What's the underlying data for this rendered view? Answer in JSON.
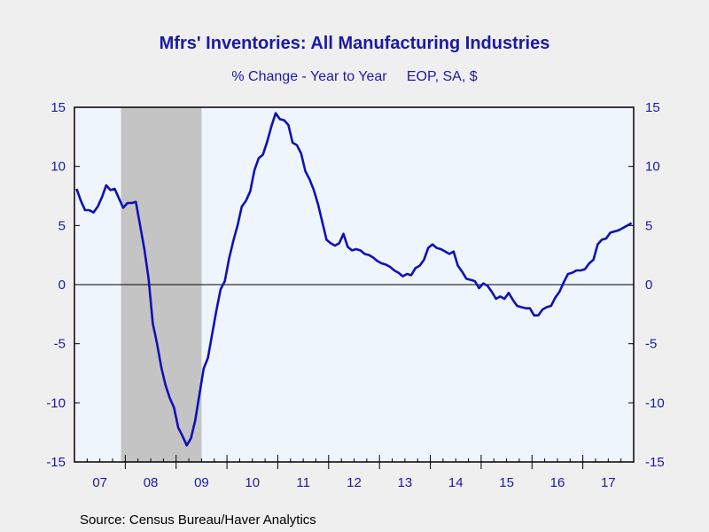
{
  "chart_data": {
    "type": "line",
    "title": "Mfrs' Inventories: All Manufacturing Industries",
    "subtitle": "% Change - Year to Year     EOP, SA, $",
    "source": "Source:  Census Bureau/Haver Analytics",
    "x_tick_labels": [
      "07",
      "08",
      "09",
      "10",
      "11",
      "12",
      "13",
      "14",
      "15",
      "16",
      "17"
    ],
    "y_tick_labels": [
      "15",
      "10",
      "5",
      "0",
      "-5",
      "-10",
      "-15"
    ],
    "y_ticks": [
      15,
      10,
      5,
      0,
      -5,
      -10,
      -15
    ],
    "ylim": [
      -15,
      15
    ],
    "xlim": [
      "2007-01",
      "2017-12"
    ],
    "grid": false,
    "zero_line": true,
    "recession_shading": [
      {
        "start": "2007-12",
        "end": "2009-06"
      }
    ],
    "colors": {
      "line": "#1010b8",
      "axis_text": "#1a1aa6",
      "plot_bg": "#eef5fd",
      "recession": "#c4c4c4"
    },
    "series": [
      {
        "values": [
          [
            "2007-01",
            8.1
          ],
          [
            "2007-02",
            7.1
          ],
          [
            "2007-03",
            6.3
          ],
          [
            "2007-04",
            6.3
          ],
          [
            "2007-05",
            6.1
          ],
          [
            "2007-06",
            6.6
          ],
          [
            "2007-07",
            7.4
          ],
          [
            "2007-08",
            8.4
          ],
          [
            "2007-09",
            8.0
          ],
          [
            "2007-10",
            8.1
          ],
          [
            "2007-11",
            7.3
          ],
          [
            "2007-12",
            6.5
          ],
          [
            "2008-01",
            6.9
          ],
          [
            "2008-02",
            6.9
          ],
          [
            "2008-03",
            7.0
          ],
          [
            "2008-04",
            5.0
          ],
          [
            "2008-05",
            3.0
          ],
          [
            "2008-06",
            0.5
          ],
          [
            "2008-07",
            -3.3
          ],
          [
            "2008-08",
            -5.0
          ],
          [
            "2008-09",
            -7.0
          ],
          [
            "2008-10",
            -8.5
          ],
          [
            "2008-11",
            -9.6
          ],
          [
            "2008-12",
            -10.4
          ],
          [
            "2009-01",
            -12.1
          ],
          [
            "2009-02",
            -12.8
          ],
          [
            "2009-03",
            -13.6
          ],
          [
            "2009-04",
            -13.0
          ],
          [
            "2009-05",
            -11.5
          ],
          [
            "2009-06",
            -9.3
          ],
          [
            "2009-07",
            -7.1
          ],
          [
            "2009-08",
            -6.2
          ],
          [
            "2009-09",
            -4.2
          ],
          [
            "2009-10",
            -2.2
          ],
          [
            "2009-11",
            -0.4
          ],
          [
            "2009-12",
            0.3
          ],
          [
            "2010-01",
            2.2
          ],
          [
            "2010-02",
            3.7
          ],
          [
            "2010-03",
            5.0
          ],
          [
            "2010-04",
            6.6
          ],
          [
            "2010-05",
            7.1
          ],
          [
            "2010-06",
            7.9
          ],
          [
            "2010-07",
            9.7
          ],
          [
            "2010-08",
            10.7
          ],
          [
            "2010-09",
            11.0
          ],
          [
            "2010-10",
            12.1
          ],
          [
            "2010-11",
            13.4
          ],
          [
            "2010-12",
            14.5
          ],
          [
            "2011-01",
            14.0
          ],
          [
            "2011-02",
            13.9
          ],
          [
            "2011-03",
            13.5
          ],
          [
            "2011-04",
            12.0
          ],
          [
            "2011-05",
            11.8
          ],
          [
            "2011-06",
            11.1
          ],
          [
            "2011-07",
            9.6
          ],
          [
            "2011-08",
            8.9
          ],
          [
            "2011-09",
            8.0
          ],
          [
            "2011-10",
            6.8
          ],
          [
            "2011-11",
            5.3
          ],
          [
            "2011-12",
            3.8
          ],
          [
            "2012-01",
            3.5
          ],
          [
            "2012-02",
            3.3
          ],
          [
            "2012-03",
            3.5
          ],
          [
            "2012-04",
            4.3
          ],
          [
            "2012-05",
            3.2
          ],
          [
            "2012-06",
            2.9
          ],
          [
            "2012-07",
            3.0
          ],
          [
            "2012-08",
            2.9
          ],
          [
            "2012-09",
            2.6
          ],
          [
            "2012-10",
            2.5
          ],
          [
            "2012-11",
            2.3
          ],
          [
            "2012-12",
            2.0
          ],
          [
            "2013-01",
            1.8
          ],
          [
            "2013-02",
            1.7
          ],
          [
            "2013-03",
            1.5
          ],
          [
            "2013-04",
            1.2
          ],
          [
            "2013-05",
            1.0
          ],
          [
            "2013-06",
            0.7
          ],
          [
            "2013-07",
            0.9
          ],
          [
            "2013-08",
            0.8
          ],
          [
            "2013-09",
            1.4
          ],
          [
            "2013-10",
            1.6
          ],
          [
            "2013-11",
            2.1
          ],
          [
            "2013-12",
            3.1
          ],
          [
            "2014-01",
            3.4
          ],
          [
            "2014-02",
            3.1
          ],
          [
            "2014-03",
            3.0
          ],
          [
            "2014-04",
            2.8
          ],
          [
            "2014-05",
            2.6
          ],
          [
            "2014-06",
            2.8
          ],
          [
            "2014-07",
            1.6
          ],
          [
            "2014-08",
            1.1
          ],
          [
            "2014-09",
            0.5
          ],
          [
            "2014-10",
            0.4
          ],
          [
            "2014-11",
            0.3
          ],
          [
            "2014-12",
            -0.3
          ],
          [
            "2015-01",
            0.1
          ],
          [
            "2015-02",
            -0.1
          ],
          [
            "2015-03",
            -0.6
          ],
          [
            "2015-04",
            -1.2
          ],
          [
            "2015-05",
            -1.0
          ],
          [
            "2015-06",
            -1.2
          ],
          [
            "2015-07",
            -0.7
          ],
          [
            "2015-08",
            -1.3
          ],
          [
            "2015-09",
            -1.8
          ],
          [
            "2015-10",
            -1.9
          ],
          [
            "2015-11",
            -2.0
          ],
          [
            "2015-12",
            -2.0
          ],
          [
            "2016-01",
            -2.6
          ],
          [
            "2016-02",
            -2.6
          ],
          [
            "2016-03",
            -2.1
          ],
          [
            "2016-04",
            -1.9
          ],
          [
            "2016-05",
            -1.8
          ],
          [
            "2016-06",
            -1.1
          ],
          [
            "2016-07",
            -0.6
          ],
          [
            "2016-08",
            0.2
          ],
          [
            "2016-09",
            0.9
          ],
          [
            "2016-10",
            1.0
          ],
          [
            "2016-11",
            1.2
          ],
          [
            "2016-12",
            1.2
          ],
          [
            "2017-01",
            1.3
          ],
          [
            "2017-02",
            1.8
          ],
          [
            "2017-03",
            2.1
          ],
          [
            "2017-04",
            3.4
          ],
          [
            "2017-05",
            3.8
          ],
          [
            "2017-06",
            3.9
          ],
          [
            "2017-07",
            4.4
          ],
          [
            "2017-08",
            4.5
          ],
          [
            "2017-09",
            4.6
          ],
          [
            "2017-10",
            4.8
          ],
          [
            "2017-11",
            5.0
          ],
          [
            "2017-12",
            5.2
          ]
        ]
      }
    ]
  }
}
